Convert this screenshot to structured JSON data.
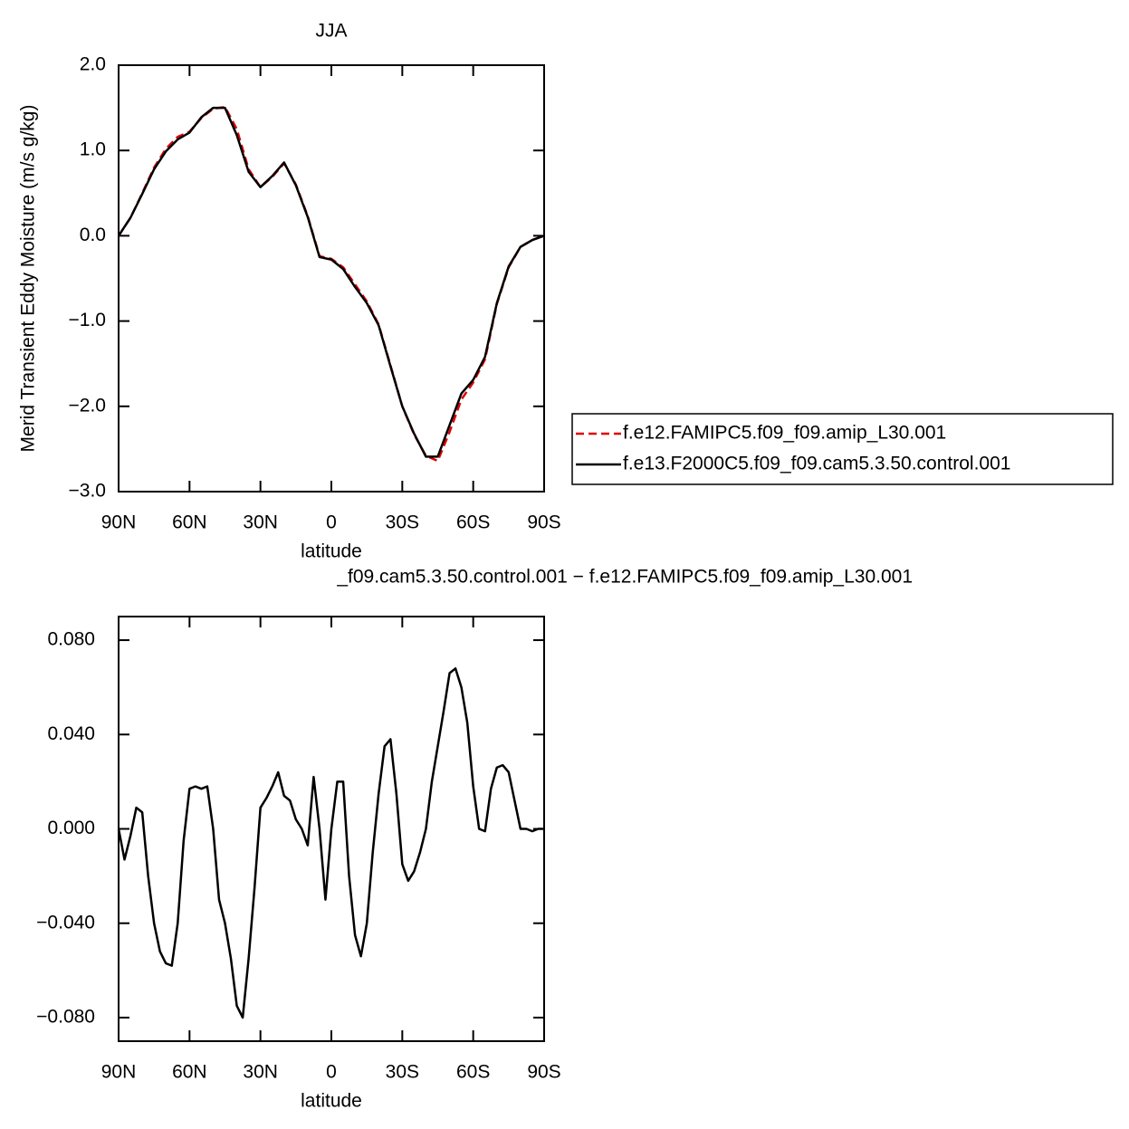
{
  "chart_data": [
    {
      "type": "line",
      "title": "JJA",
      "xlabel": "latitude",
      "ylabel": "Merid Transient Eddy Moisture (m/s g/kg)",
      "x": [
        90,
        85,
        80,
        75,
        70,
        65,
        60,
        55,
        50,
        45,
        40,
        35,
        30,
        25,
        20,
        15,
        10,
        5,
        0,
        -5,
        -10,
        -15,
        -20,
        -25,
        -30,
        -35,
        -40,
        -45,
        -50,
        -55,
        -60,
        -65,
        -70,
        -75,
        -80,
        -85,
        -90
      ],
      "series": [
        {
          "name": "f.e12.FAMIPC5.f09_f09.amip_L30.001",
          "color": "#e00000",
          "line_style": "dashed",
          "values": [
            0.0,
            0.21,
            0.5,
            0.8,
            1.02,
            1.16,
            1.22,
            1.38,
            1.49,
            1.51,
            1.25,
            0.78,
            0.57,
            0.69,
            0.85,
            0.6,
            0.23,
            -0.24,
            -0.27,
            -0.37,
            -0.57,
            -0.77,
            -1.04,
            -1.52,
            -2.0,
            -2.33,
            -2.58,
            -2.64,
            -2.3,
            -1.92,
            -1.72,
            -1.45,
            -0.8,
            -0.37,
            -0.13,
            -0.05,
            0.0
          ]
        },
        {
          "name": "f.e13.F2000C5.f09_f09.cam5.3.50.control.001",
          "color": "#000000",
          "line_style": "solid",
          "values": [
            0.0,
            0.21,
            0.49,
            0.78,
            0.99,
            1.13,
            1.21,
            1.39,
            1.5,
            1.5,
            1.18,
            0.75,
            0.57,
            0.7,
            0.86,
            0.59,
            0.22,
            -0.25,
            -0.28,
            -0.39,
            -0.6,
            -0.79,
            -1.05,
            -1.53,
            -2.0,
            -2.32,
            -2.59,
            -2.59,
            -2.22,
            -1.85,
            -1.69,
            -1.42,
            -0.79,
            -0.36,
            -0.13,
            -0.05,
            0.0
          ]
        }
      ],
      "xlim": [
        90,
        -90
      ],
      "xticks": [
        {
          "value": 90,
          "label": "90N"
        },
        {
          "value": 60,
          "label": "60N"
        },
        {
          "value": 30,
          "label": "30N"
        },
        0,
        {
          "value": -30,
          "label": "30S"
        },
        {
          "value": -60,
          "label": "60S"
        },
        {
          "value": -90,
          "label": "90S"
        }
      ],
      "ylim": [
        -3,
        2
      ],
      "yticks": [
        {
          "value": 2,
          "label": "2.0"
        },
        {
          "value": 1,
          "label": "1.0"
        },
        {
          "value": 0,
          "label": "0.0"
        },
        {
          "value": -1,
          "label": "−1.0"
        },
        {
          "value": -2,
          "label": "−2.0"
        },
        {
          "value": -3,
          "label": "−3.0"
        }
      ],
      "legend": "outside right"
    },
    {
      "type": "line",
      "title": "_f09.cam5.3.50.control.001 − f.e12.FAMIPC5.f09_f09.amip_L30.001",
      "xlabel": "latitude",
      "x": [
        90,
        87.5,
        85,
        82.5,
        80,
        77.5,
        75,
        72.5,
        70,
        67.5,
        65,
        62.5,
        60,
        57.5,
        55,
        52.5,
        50,
        47.5,
        45,
        42.5,
        40,
        37.5,
        35,
        32.5,
        30,
        27.5,
        25,
        22.5,
        20,
        17.5,
        15,
        12.5,
        10,
        7.5,
        5,
        2.5,
        0,
        -2.5,
        -5,
        -7.5,
        -10,
        -12.5,
        -15,
        -17.5,
        -20,
        -22.5,
        -25,
        -27.5,
        -30,
        -32.5,
        -35,
        -37.5,
        -40,
        -42.5,
        -45,
        -47.5,
        -50,
        -52.5,
        -55,
        -57.5,
        -60,
        -62.5,
        -65,
        -67.5,
        -70,
        -72.5,
        -75,
        -77.5,
        -80,
        -82.5,
        -85,
        -87.5,
        -90
      ],
      "series": [
        {
          "color": "#000000",
          "line_style": "solid",
          "values": [
            0.0,
            -0.013,
            -0.003,
            0.009,
            0.007,
            -0.02,
            -0.04,
            -0.052,
            -0.057,
            -0.058,
            -0.04,
            -0.005,
            0.017,
            0.018,
            0.017,
            0.018,
            0.0,
            -0.03,
            -0.04,
            -0.055,
            -0.075,
            -0.08,
            -0.055,
            -0.025,
            0.009,
            0.013,
            0.018,
            0.024,
            0.014,
            0.012,
            0.004,
            0.0,
            -0.007,
            0.022,
            0.0,
            -0.03,
            0.0,
            0.02,
            0.02,
            -0.02,
            -0.045,
            -0.054,
            -0.04,
            -0.01,
            0.015,
            0.035,
            0.038,
            0.015,
            -0.015,
            -0.022,
            -0.018,
            -0.01,
            0.0,
            0.02,
            0.035,
            0.05,
            0.066,
            0.068,
            0.06,
            0.045,
            0.018,
            0.0,
            -0.001,
            0.017,
            0.026,
            0.027,
            0.024,
            0.012,
            0.0,
            0.0,
            -0.001,
            0.0,
            0.0
          ]
        }
      ],
      "xlim": [
        90,
        -90
      ],
      "xticks": [
        {
          "value": 90,
          "label": "90N"
        },
        {
          "value": 60,
          "label": "60N"
        },
        {
          "value": 30,
          "label": "30N"
        },
        0,
        {
          "value": -30,
          "label": "30S"
        },
        {
          "value": -60,
          "label": "60S"
        },
        {
          "value": -90,
          "label": "90S"
        }
      ],
      "ylim": [
        -0.09,
        0.09
      ],
      "yticks": [
        {
          "value": 0.08,
          "label": "0.080"
        },
        {
          "value": 0.04,
          "label": "0.040"
        },
        {
          "value": 0,
          "label": "0.000"
        },
        {
          "value": -0.04,
          "label": "−0.040"
        },
        {
          "value": -0.08,
          "label": "−0.080"
        }
      ]
    }
  ]
}
